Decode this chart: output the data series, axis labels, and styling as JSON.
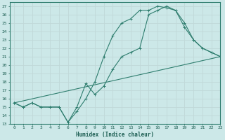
{
  "xlabel": "Humidex (Indice chaleur)",
  "bg_color": "#cce8e8",
  "grid_color": "#aad4d4",
  "line_color": "#2e7d6e",
  "xlim": [
    -0.5,
    23
  ],
  "ylim": [
    13,
    27.5
  ],
  "xticks": [
    0,
    1,
    2,
    3,
    4,
    5,
    6,
    7,
    8,
    9,
    10,
    11,
    12,
    13,
    14,
    15,
    16,
    17,
    18,
    19,
    20,
    21,
    22,
    23
  ],
  "yticks": [
    13,
    14,
    15,
    16,
    17,
    18,
    19,
    20,
    21,
    22,
    23,
    24,
    25,
    26,
    27
  ],
  "line1_x": [
    0,
    1,
    2,
    3,
    4,
    5,
    6,
    7,
    8,
    9,
    10,
    11,
    12,
    13,
    14,
    15,
    16,
    17,
    18,
    19,
    20,
    21,
    22,
    23
  ],
  "line1_y": [
    15.5,
    15.0,
    15.5,
    15.0,
    15.0,
    15.0,
    13.2,
    15.0,
    17.8,
    16.5,
    17.5,
    19.5,
    21.0,
    21.5,
    22.0,
    26.0,
    26.5,
    27.0,
    26.5,
    25.0,
    23.0,
    22.0,
    21.5,
    21.0
  ],
  "line2_x": [
    0,
    1,
    2,
    3,
    4,
    5,
    6,
    7,
    8,
    9,
    10,
    11,
    12,
    13,
    14,
    15,
    16,
    17,
    18,
    19,
    20,
    21,
    22,
    23
  ],
  "line2_y": [
    15.5,
    15.0,
    15.5,
    15.0,
    15.0,
    15.0,
    13.2,
    14.5,
    16.0,
    18.0,
    21.0,
    23.5,
    25.0,
    25.5,
    26.5,
    26.5,
    27.0,
    26.8,
    26.5,
    24.5,
    23.0,
    22.0,
    21.5,
    21.0
  ],
  "line3_x": [
    0,
    23
  ],
  "line3_y": [
    15.5,
    21.0
  ]
}
